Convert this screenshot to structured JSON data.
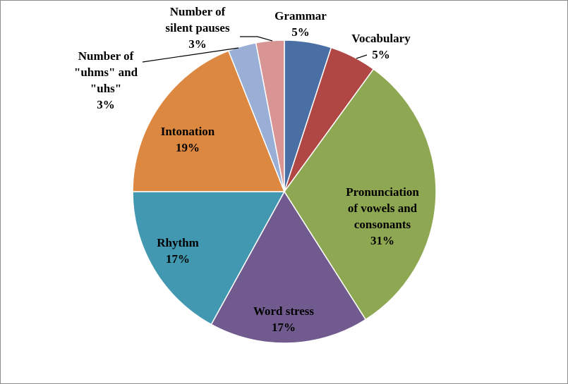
{
  "chart_data": {
    "type": "pie",
    "title": "",
    "slices": [
      {
        "label_lines": [
          "Grammar"
        ],
        "value": 5,
        "value_text": "5%",
        "color": "#4a6fa5"
      },
      {
        "label_lines": [
          "Vocabulary"
        ],
        "value": 5,
        "value_text": "5%",
        "color": "#b04745"
      },
      {
        "label_lines": [
          "Pronunciation",
          "of vowels and",
          "consonants"
        ],
        "value": 31,
        "value_text": "31%",
        "color": "#8ea752"
      },
      {
        "label_lines": [
          "Word stress"
        ],
        "value": 17,
        "value_text": "17%",
        "color": "#705a8e"
      },
      {
        "label_lines": [
          "Rhythm"
        ],
        "value": 17,
        "value_text": "17%",
        "color": "#4198b0"
      },
      {
        "label_lines": [
          "Intonation"
        ],
        "value": 19,
        "value_text": "19%",
        "color": "#dd8841"
      },
      {
        "label_lines": [
          "Number of",
          "\"uhms\" and",
          "\"uhs\""
        ],
        "value": 3,
        "value_text": "3%",
        "color": "#99afd6"
      },
      {
        "label_lines": [
          "Number of",
          "silent pauses"
        ],
        "value": 3,
        "value_text": "3%",
        "color": "#d89593"
      }
    ],
    "legend": "none",
    "start_angle": "12 o'clock",
    "direction": "clockwise"
  }
}
